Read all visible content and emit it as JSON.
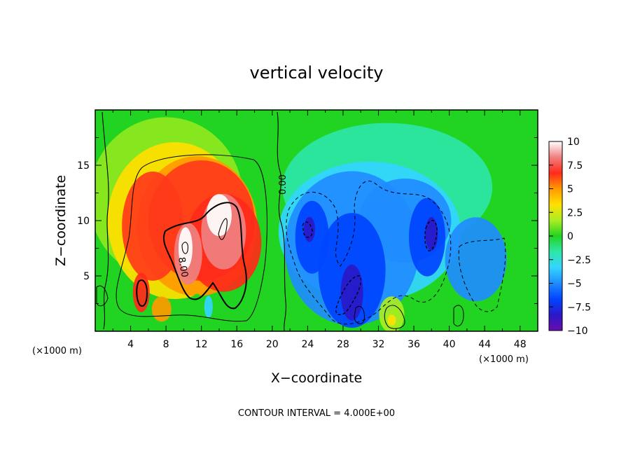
{
  "chart_data": {
    "type": "heatmap",
    "title": "vertical velocity",
    "xlabel": "X−coordinate",
    "ylabel": "Z−coordinate",
    "x_unit_label": "(×1000 m)",
    "x_unit_label_right": "(×1000 m)",
    "footer": "CONTOUR INTERVAL = 4.000E+00",
    "xlim": [
      0,
      50
    ],
    "ylim": [
      0,
      20
    ],
    "x_ticks": [
      4,
      8,
      12,
      16,
      20,
      24,
      28,
      32,
      36,
      40,
      44,
      48
    ],
    "x_tick_labels": [
      "4",
      "8",
      "12",
      "16",
      "20",
      "24",
      "28",
      "32",
      "36",
      "40",
      "44",
      "48"
    ],
    "y_ticks": [
      5,
      10,
      15
    ],
    "y_tick_labels": [
      "5",
      "10",
      "15"
    ],
    "colorbar": {
      "range": [
        -10,
        10
      ],
      "ticks": [
        10,
        7.5,
        5,
        2.5,
        0,
        -2.5,
        -5,
        -7.5,
        -10
      ],
      "tick_labels": [
        "10",
        "7.5",
        "5",
        "2.5",
        "0",
        "−2.5",
        "−5",
        "−7.5",
        "−10"
      ],
      "colors": [
        "#6a0dad",
        "#2a18c8",
        "#0044ff",
        "#1f8cff",
        "#33d5ff",
        "#2ee6a8",
        "#22d422",
        "#aaee22",
        "#ffe000",
        "#ff9a00",
        "#ff2a1a",
        "#f08080",
        "#ffffff"
      ]
    },
    "contour_labels": [
      "0.00",
      "8.00"
    ],
    "features": [
      {
        "name": "updraft core",
        "x": 10.5,
        "z": 8.5,
        "w": 12
      },
      {
        "name": "updraft",
        "x": 14.5,
        "z": 10.5,
        "w": 11
      },
      {
        "name": "updraft",
        "x": 5.0,
        "z": 4.0,
        "w": 8
      },
      {
        "name": "downdraft",
        "x": 29.0,
        "z": 4.0,
        "w": -9
      },
      {
        "name": "downdraft",
        "x": 38.0,
        "z": 9.0,
        "w": -9
      },
      {
        "name": "downdraft",
        "x": 24.0,
        "z": 9.5,
        "w": -8
      }
    ]
  }
}
